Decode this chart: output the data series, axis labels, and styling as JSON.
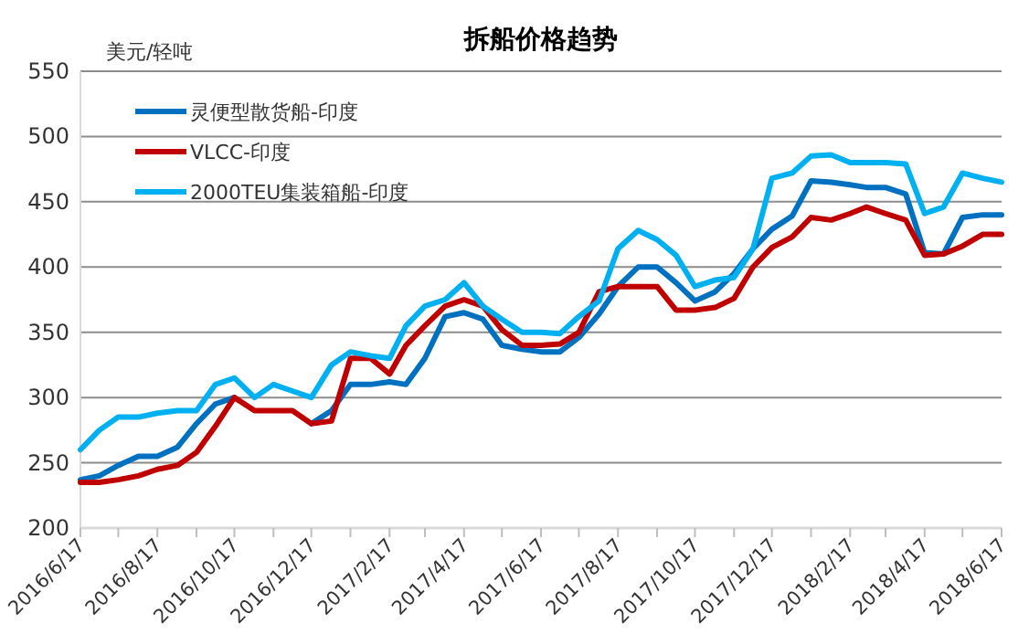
{
  "chart_data": {
    "type": "line",
    "title": "拆船价格趋势",
    "ylabel": "美元/轻吨",
    "x": [
      "2016-06-17",
      "2016-07-02",
      "2016-07-17",
      "2016-08-02",
      "2016-08-17",
      "2016-09-02",
      "2016-09-17",
      "2016-10-02",
      "2016-10-17",
      "2016-11-02",
      "2016-11-17",
      "2016-12-02",
      "2016-12-17",
      "2017-01-02",
      "2017-01-17",
      "2017-02-02",
      "2017-02-17",
      "2017-03-02",
      "2017-03-17",
      "2017-04-02",
      "2017-04-17",
      "2017-05-02",
      "2017-05-17",
      "2017-06-02",
      "2017-06-17",
      "2017-07-02",
      "2017-07-17",
      "2017-08-02",
      "2017-08-17",
      "2017-09-02",
      "2017-09-17",
      "2017-10-02",
      "2017-10-17",
      "2017-11-02",
      "2017-11-17",
      "2017-12-02",
      "2017-12-17",
      "2018-01-02",
      "2018-01-17",
      "2018-02-02",
      "2018-02-17",
      "2018-03-02",
      "2018-03-17",
      "2018-04-02",
      "2018-04-17",
      "2018-05-02",
      "2018-05-17",
      "2018-06-02",
      "2018-06-17"
    ],
    "series": [
      {
        "name": "灵便型散货船-印度",
        "color": "#0070c0",
        "values": [
          237,
          240,
          248,
          255,
          255,
          262,
          280,
          295,
          300,
          null,
          null,
          null,
          280,
          290,
          310,
          310,
          312,
          310,
          330,
          362,
          365,
          360,
          340,
          337,
          335,
          335,
          346,
          364,
          385,
          400,
          400,
          388,
          374,
          381,
          395,
          414,
          429,
          439,
          466,
          465,
          463,
          461,
          461,
          456,
          411,
          410,
          438,
          440,
          440
        ]
      },
      {
        "name": "VLCC-印度",
        "color": "#c00000",
        "values": [
          235,
          235,
          237,
          240,
          245,
          248,
          258,
          278,
          300,
          290,
          290,
          290,
          280,
          282,
          330,
          330,
          318,
          340,
          355,
          370,
          375,
          370,
          352,
          340,
          340,
          341,
          350,
          381,
          385,
          385,
          385,
          367,
          367,
          369,
          376,
          400,
          415,
          423,
          438,
          436,
          441,
          446,
          441,
          436,
          409,
          410,
          416,
          425,
          425
        ]
      },
      {
        "name": "2000TEU集装箱船-印度",
        "color": "#00b0f0",
        "values": [
          260,
          275,
          285,
          285,
          288,
          290,
          290,
          310,
          315,
          300,
          310,
          305,
          300,
          325,
          335,
          332,
          330,
          355,
          370,
          375,
          388,
          370,
          360,
          350,
          350,
          349,
          362,
          374,
          414,
          428,
          421,
          409,
          385,
          390,
          392,
          414,
          468,
          472,
          485,
          486,
          480,
          480,
          480,
          479,
          441,
          446,
          472,
          468,
          465
        ]
      }
    ],
    "xlim": [
      "2016-06-17",
      "2018-06-17"
    ],
    "xticks": [
      {
        "value": "2016-06-17",
        "label": "2016/6/17"
      },
      {
        "value": "2016-07-17",
        "label": null
      },
      {
        "value": "2016-08-17",
        "label": "2016/8/17"
      },
      {
        "value": "2016-09-17",
        "label": null
      },
      {
        "value": "2016-10-17",
        "label": "2016/10/17"
      },
      {
        "value": "2016-11-17",
        "label": null
      },
      {
        "value": "2016-12-17",
        "label": "2016/12/17"
      },
      {
        "value": "2017-01-17",
        "label": null
      },
      {
        "value": "2017-02-17",
        "label": "2017/2/17"
      },
      {
        "value": "2017-03-17",
        "label": null
      },
      {
        "value": "2017-04-17",
        "label": "2017/4/17"
      },
      {
        "value": "2017-05-17",
        "label": null
      },
      {
        "value": "2017-06-17",
        "label": "2017/6/17"
      },
      {
        "value": "2017-07-17",
        "label": null
      },
      {
        "value": "2017-08-17",
        "label": "2017/8/17"
      },
      {
        "value": "2017-09-17",
        "label": null
      },
      {
        "value": "2017-10-17",
        "label": "2017/10/17"
      },
      {
        "value": "2017-11-17",
        "label": null
      },
      {
        "value": "2017-12-17",
        "label": "2017/12/17"
      },
      {
        "value": "2018-01-17",
        "label": null
      },
      {
        "value": "2018-02-17",
        "label": "2018/2/17"
      },
      {
        "value": "2018-03-17",
        "label": null
      },
      {
        "value": "2018-04-17",
        "label": "2018/4/17"
      },
      {
        "value": "2018-05-17",
        "label": null
      },
      {
        "value": "2018-06-17",
        "label": "2018/6/17"
      }
    ],
    "ylim": [
      200,
      550
    ],
    "yticks": [
      200,
      250,
      300,
      350,
      400,
      450,
      500,
      550
    ],
    "grid": "y",
    "legend": "top left"
  }
}
